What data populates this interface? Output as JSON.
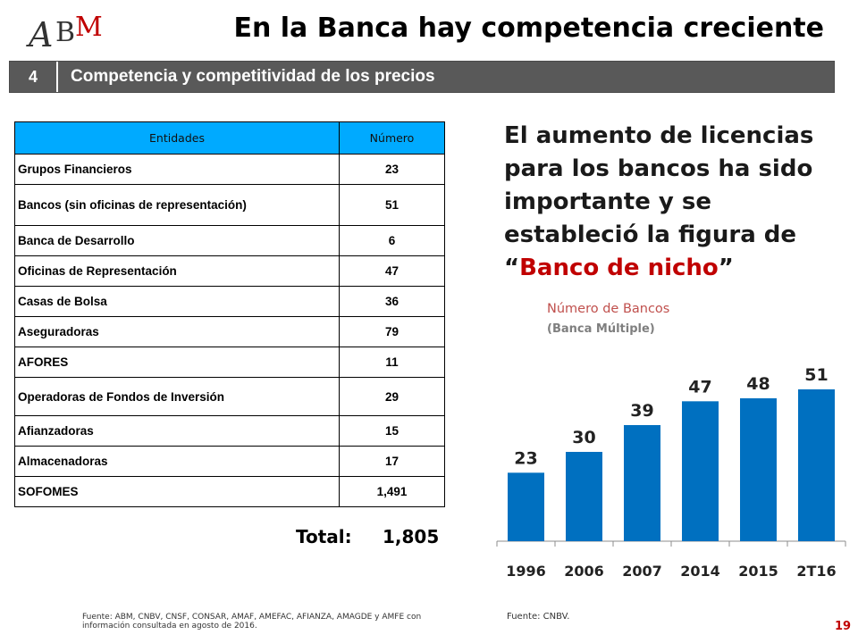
{
  "logo": {
    "text": "ABM"
  },
  "header": {
    "title": "En la Banca hay competencia creciente"
  },
  "section": {
    "number": "4",
    "label": "Competencia y competitividad de los precios"
  },
  "table": {
    "columns": [
      "Entidades",
      "Número"
    ],
    "rows": [
      {
        "entity": "Grupos Financieros",
        "number": "23"
      },
      {
        "entity": "Bancos (sin oficinas de representación)",
        "number": "51"
      },
      {
        "entity": "Banca de Desarrollo",
        "number": "6"
      },
      {
        "entity": "Oficinas de Representación",
        "number": "47"
      },
      {
        "entity": "Casas de Bolsa",
        "number": "36"
      },
      {
        "entity": "Aseguradoras",
        "number": "79"
      },
      {
        "entity": "AFORES",
        "number": "11"
      },
      {
        "entity": "Operadoras de Fondos de Inversión",
        "number": "29"
      },
      {
        "entity": "Afianzadoras",
        "number": "15"
      },
      {
        "entity": "Almacenadoras",
        "number": "17"
      },
      {
        "entity": "SOFOMES",
        "number": "1,491"
      }
    ],
    "total_label": "Total:",
    "total_value": "1,805"
  },
  "headline": {
    "text_before": "El aumento de licencias para los bancos ha sido importante y se estableció la figura de “",
    "highlight": "Banco de nicho",
    "text_after": "”"
  },
  "chart_data": {
    "type": "bar",
    "title": "Número de Bancos",
    "subtitle": "(Banca Múltiple)",
    "categories": [
      "1996",
      "2006",
      "2007",
      "2014",
      "2015",
      "2T16"
    ],
    "values": [
      23,
      30,
      39,
      47,
      48,
      51
    ],
    "bar_color": "#0070c0",
    "data_labels": true,
    "grid": false,
    "ylim": [
      0,
      60
    ]
  },
  "sources": {
    "left": "Fuente: ABM, CNBV, CNSF, CONSAR, AMAF, AMEFAC, AFIANZA, AMAGDE y AMFE con información consultada en agosto de 2016.",
    "right": "Fuente:  CNBV."
  },
  "page_number": "19",
  "colors": {
    "accent_red": "#c00000",
    "table_header": "#00aaff",
    "section_bar": "#595959"
  }
}
